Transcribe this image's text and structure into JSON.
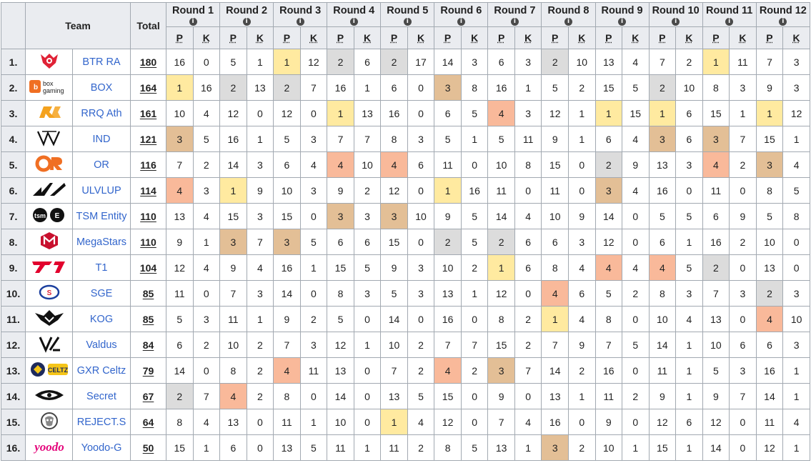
{
  "headers": {
    "team": "Team",
    "total": "Total",
    "rounds": [
      "Round 1",
      "Round 2",
      "Round 3",
      "Round 4",
      "Round 5",
      "Round 6",
      "Round 7",
      "Round 8",
      "Round 9",
      "Round 10",
      "Round 11",
      "Round 12"
    ],
    "p_label": "P",
    "k_label": "K",
    "info_symbol": "i"
  },
  "colors": {
    "gold": "#ffeaa0",
    "silver": "#dcdcdc",
    "bronze": "#e3bf96",
    "fourth": "#f9b99a",
    "link": "#3366cc"
  },
  "teams": [
    {
      "rank": "1.",
      "name": "BTR RA",
      "logo": "btr-logo",
      "total": "180",
      "rounds": [
        [
          "16",
          "0",
          ""
        ],
        [
          "5",
          "1",
          ""
        ],
        [
          "1",
          "12",
          "gold"
        ],
        [
          "2",
          "6",
          "silver"
        ],
        [
          "2",
          "17",
          "silver"
        ],
        [
          "14",
          "3",
          ""
        ],
        [
          "6",
          "3",
          ""
        ],
        [
          "2",
          "10",
          "silver"
        ],
        [
          "13",
          "4",
          ""
        ],
        [
          "7",
          "2",
          ""
        ],
        [
          "1",
          "11",
          "gold"
        ],
        [
          "7",
          "3",
          ""
        ]
      ]
    },
    {
      "rank": "2.",
      "name": "BOX",
      "logo": "box-gaming-logo",
      "total": "164",
      "rounds": [
        [
          "1",
          "16",
          "gold"
        ],
        [
          "2",
          "13",
          "silver"
        ],
        [
          "2",
          "7",
          "silver"
        ],
        [
          "16",
          "1",
          ""
        ],
        [
          "6",
          "0",
          ""
        ],
        [
          "3",
          "8",
          "bronze"
        ],
        [
          "16",
          "1",
          ""
        ],
        [
          "5",
          "2",
          ""
        ],
        [
          "15",
          "5",
          ""
        ],
        [
          "2",
          "10",
          "silver"
        ],
        [
          "8",
          "3",
          ""
        ],
        [
          "9",
          "3",
          ""
        ]
      ]
    },
    {
      "rank": "3.",
      "name": "RRQ Ath",
      "logo": "rrq-logo",
      "total": "161",
      "rounds": [
        [
          "10",
          "4",
          ""
        ],
        [
          "12",
          "0",
          ""
        ],
        [
          "12",
          "0",
          ""
        ],
        [
          "1",
          "13",
          "gold"
        ],
        [
          "16",
          "0",
          ""
        ],
        [
          "6",
          "5",
          ""
        ],
        [
          "4",
          "3",
          "fourth"
        ],
        [
          "12",
          "1",
          ""
        ],
        [
          "1",
          "15",
          "gold"
        ],
        [
          "1",
          "6",
          "gold"
        ],
        [
          "15",
          "1",
          ""
        ],
        [
          "1",
          "12",
          "gold"
        ]
      ]
    },
    {
      "rank": "4.",
      "name": "IND",
      "logo": "ind-logo",
      "total": "121",
      "rounds": [
        [
          "3",
          "5",
          "bronze"
        ],
        [
          "16",
          "1",
          ""
        ],
        [
          "5",
          "3",
          ""
        ],
        [
          "7",
          "7",
          ""
        ],
        [
          "8",
          "3",
          ""
        ],
        [
          "5",
          "1",
          ""
        ],
        [
          "5",
          "11",
          ""
        ],
        [
          "9",
          "1",
          ""
        ],
        [
          "6",
          "4",
          ""
        ],
        [
          "3",
          "6",
          "bronze"
        ],
        [
          "3",
          "7",
          "bronze"
        ],
        [
          "15",
          "1",
          ""
        ]
      ]
    },
    {
      "rank": "5.",
      "name": "OR",
      "logo": "or-logo",
      "total": "116",
      "rounds": [
        [
          "7",
          "2",
          ""
        ],
        [
          "14",
          "3",
          ""
        ],
        [
          "6",
          "4",
          ""
        ],
        [
          "4",
          "10",
          "fourth"
        ],
        [
          "4",
          "6",
          "fourth"
        ],
        [
          "11",
          "0",
          ""
        ],
        [
          "10",
          "8",
          ""
        ],
        [
          "15",
          "0",
          ""
        ],
        [
          "2",
          "9",
          "silver"
        ],
        [
          "13",
          "3",
          ""
        ],
        [
          "4",
          "2",
          "fourth"
        ],
        [
          "3",
          "4",
          "bronze"
        ]
      ]
    },
    {
      "rank": "6.",
      "name": "ULVLUP",
      "logo": "ulvlup-logo",
      "total": "114",
      "rounds": [
        [
          "4",
          "3",
          "fourth"
        ],
        [
          "1",
          "9",
          "gold"
        ],
        [
          "10",
          "3",
          ""
        ],
        [
          "9",
          "2",
          ""
        ],
        [
          "12",
          "0",
          ""
        ],
        [
          "1",
          "16",
          "gold"
        ],
        [
          "11",
          "0",
          ""
        ],
        [
          "11",
          "0",
          ""
        ],
        [
          "3",
          "4",
          "bronze"
        ],
        [
          "16",
          "0",
          ""
        ],
        [
          "11",
          "0",
          ""
        ],
        [
          "8",
          "5",
          ""
        ]
      ]
    },
    {
      "rank": "7.",
      "name": "TSM Entity",
      "logo": "tsm-logo",
      "total": "110",
      "rounds": [
        [
          "13",
          "4",
          ""
        ],
        [
          "15",
          "3",
          ""
        ],
        [
          "15",
          "0",
          ""
        ],
        [
          "3",
          "3",
          "bronze"
        ],
        [
          "3",
          "10",
          "bronze"
        ],
        [
          "9",
          "5",
          ""
        ],
        [
          "14",
          "4",
          ""
        ],
        [
          "10",
          "9",
          ""
        ],
        [
          "14",
          "0",
          ""
        ],
        [
          "5",
          "5",
          ""
        ],
        [
          "6",
          "9",
          ""
        ],
        [
          "5",
          "8",
          ""
        ]
      ]
    },
    {
      "rank": "8.",
      "name": "MegaStars",
      "logo": "megastars-logo",
      "total": "110",
      "rounds": [
        [
          "9",
          "1",
          ""
        ],
        [
          "3",
          "7",
          "bronze"
        ],
        [
          "3",
          "5",
          "bronze"
        ],
        [
          "6",
          "6",
          ""
        ],
        [
          "15",
          "0",
          ""
        ],
        [
          "2",
          "5",
          "silver"
        ],
        [
          "2",
          "6",
          "silver"
        ],
        [
          "6",
          "3",
          ""
        ],
        [
          "12",
          "0",
          ""
        ],
        [
          "6",
          "1",
          ""
        ],
        [
          "16",
          "2",
          ""
        ],
        [
          "10",
          "0",
          ""
        ]
      ]
    },
    {
      "rank": "9.",
      "name": "T1",
      "logo": "t1-logo",
      "total": "104",
      "rounds": [
        [
          "12",
          "4",
          ""
        ],
        [
          "9",
          "4",
          ""
        ],
        [
          "16",
          "1",
          ""
        ],
        [
          "15",
          "5",
          ""
        ],
        [
          "9",
          "3",
          ""
        ],
        [
          "10",
          "2",
          ""
        ],
        [
          "1",
          "6",
          "gold"
        ],
        [
          "8",
          "4",
          ""
        ],
        [
          "4",
          "4",
          "fourth"
        ],
        [
          "4",
          "5",
          "fourth"
        ],
        [
          "2",
          "0",
          "silver"
        ],
        [
          "13",
          "0",
          ""
        ]
      ]
    },
    {
      "rank": "10.",
      "name": "SGE",
      "logo": "sge-logo",
      "total": "85",
      "rounds": [
        [
          "11",
          "0",
          ""
        ],
        [
          "7",
          "3",
          ""
        ],
        [
          "14",
          "0",
          ""
        ],
        [
          "8",
          "3",
          ""
        ],
        [
          "5",
          "3",
          ""
        ],
        [
          "13",
          "1",
          ""
        ],
        [
          "12",
          "0",
          ""
        ],
        [
          "4",
          "6",
          "fourth"
        ],
        [
          "5",
          "2",
          ""
        ],
        [
          "8",
          "3",
          ""
        ],
        [
          "7",
          "3",
          ""
        ],
        [
          "2",
          "3",
          "silver"
        ]
      ]
    },
    {
      "rank": "11.",
      "name": "KOG",
      "logo": "kog-logo",
      "total": "85",
      "rounds": [
        [
          "5",
          "3",
          ""
        ],
        [
          "11",
          "1",
          ""
        ],
        [
          "9",
          "2",
          ""
        ],
        [
          "5",
          "0",
          ""
        ],
        [
          "14",
          "0",
          ""
        ],
        [
          "16",
          "0",
          ""
        ],
        [
          "8",
          "2",
          ""
        ],
        [
          "1",
          "4",
          "gold"
        ],
        [
          "8",
          "0",
          ""
        ],
        [
          "10",
          "4",
          ""
        ],
        [
          "13",
          "0",
          ""
        ],
        [
          "4",
          "10",
          "fourth"
        ]
      ]
    },
    {
      "rank": "12.",
      "name": "Valdus",
      "logo": "valdus-logo",
      "total": "84",
      "rounds": [
        [
          "6",
          "2",
          ""
        ],
        [
          "10",
          "2",
          ""
        ],
        [
          "7",
          "3",
          ""
        ],
        [
          "12",
          "1",
          ""
        ],
        [
          "10",
          "2",
          ""
        ],
        [
          "7",
          "7",
          ""
        ],
        [
          "15",
          "2",
          ""
        ],
        [
          "7",
          "9",
          ""
        ],
        [
          "7",
          "5",
          ""
        ],
        [
          "14",
          "1",
          ""
        ],
        [
          "10",
          "6",
          ""
        ],
        [
          "6",
          "3",
          ""
        ]
      ]
    },
    {
      "rank": "13.",
      "name": "GXR Celtz",
      "logo": "gxr-celtz-logo",
      "total": "79",
      "rounds": [
        [
          "14",
          "0",
          ""
        ],
        [
          "8",
          "2",
          ""
        ],
        [
          "4",
          "11",
          "fourth"
        ],
        [
          "13",
          "0",
          ""
        ],
        [
          "7",
          "2",
          ""
        ],
        [
          "4",
          "2",
          "fourth"
        ],
        [
          "3",
          "7",
          "bronze"
        ],
        [
          "14",
          "2",
          ""
        ],
        [
          "16",
          "0",
          ""
        ],
        [
          "11",
          "1",
          ""
        ],
        [
          "5",
          "3",
          ""
        ],
        [
          "16",
          "1",
          ""
        ]
      ]
    },
    {
      "rank": "14.",
      "name": "Secret",
      "logo": "secret-logo",
      "total": "67",
      "rounds": [
        [
          "2",
          "7",
          "silver"
        ],
        [
          "4",
          "2",
          "fourth"
        ],
        [
          "8",
          "0",
          ""
        ],
        [
          "14",
          "0",
          ""
        ],
        [
          "13",
          "5",
          ""
        ],
        [
          "15",
          "0",
          ""
        ],
        [
          "9",
          "0",
          ""
        ],
        [
          "13",
          "1",
          ""
        ],
        [
          "11",
          "2",
          ""
        ],
        [
          "9",
          "1",
          ""
        ],
        [
          "9",
          "7",
          ""
        ],
        [
          "14",
          "1",
          ""
        ]
      ]
    },
    {
      "rank": "15.",
      "name": "REJECT.S",
      "logo": "reject-logo",
      "total": "64",
      "rounds": [
        [
          "8",
          "4",
          ""
        ],
        [
          "13",
          "0",
          ""
        ],
        [
          "11",
          "1",
          ""
        ],
        [
          "10",
          "0",
          ""
        ],
        [
          "1",
          "4",
          "gold"
        ],
        [
          "12",
          "0",
          ""
        ],
        [
          "7",
          "4",
          ""
        ],
        [
          "16",
          "0",
          ""
        ],
        [
          "9",
          "0",
          ""
        ],
        [
          "12",
          "6",
          ""
        ],
        [
          "12",
          "0",
          ""
        ],
        [
          "11",
          "4",
          ""
        ]
      ]
    },
    {
      "rank": "16.",
      "name": "Yoodo-G",
      "logo": "yoodo-logo",
      "total": "50",
      "rounds": [
        [
          "15",
          "1",
          ""
        ],
        [
          "6",
          "0",
          ""
        ],
        [
          "13",
          "5",
          ""
        ],
        [
          "11",
          "1",
          ""
        ],
        [
          "11",
          "2",
          ""
        ],
        [
          "8",
          "5",
          ""
        ],
        [
          "13",
          "1",
          ""
        ],
        [
          "3",
          "2",
          "bronze"
        ],
        [
          "10",
          "1",
          ""
        ],
        [
          "15",
          "1",
          ""
        ],
        [
          "14",
          "0",
          ""
        ],
        [
          "12",
          "1",
          ""
        ]
      ]
    }
  ]
}
